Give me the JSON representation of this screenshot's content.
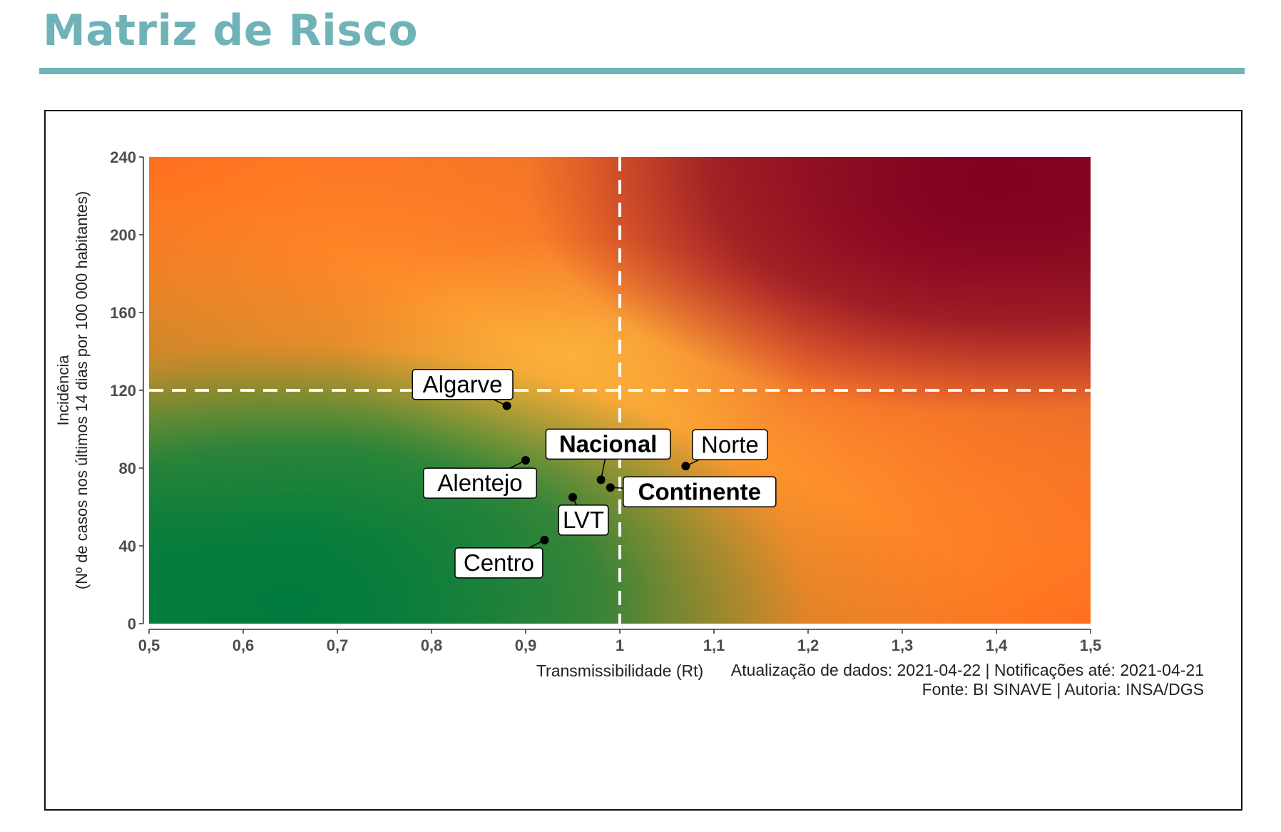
{
  "header": {
    "title": "Matriz de Risco"
  },
  "footer": {
    "update_line": "Atualização de dados: 2021-04-22 | Notificações até: 2021-04-21",
    "source_line": "Fonte: BI SINAVE | Autoria: INSA/DGS"
  },
  "colors": {
    "title": "#6fb3b8",
    "low_risk": "#007a3d",
    "medium_risk": "#f9a937",
    "high_risk": "#ff6f1e",
    "very_high_risk": "#80001f",
    "threshold_line": "#ffffff",
    "point": "#000000"
  },
  "chart_data": {
    "type": "scatter",
    "title": "",
    "xlabel": "Transmissibilidade (Rt)",
    "ylabel_lines": [
      "Incidência",
      "(Nº de casos nos últimos 14 dias por 100 000 habitantes)"
    ],
    "xlim": [
      0.5,
      1.5
    ],
    "ylim": [
      0,
      240
    ],
    "x_ticks": [
      0.5,
      0.6,
      0.7,
      0.8,
      0.9,
      1,
      1.1,
      1.2,
      1.3,
      1.4,
      1.5
    ],
    "x_tick_labels": [
      "0,5",
      "0,6",
      "0,7",
      "0,8",
      "0,9",
      "1",
      "1,1",
      "1,2",
      "1,3",
      "1,4",
      "1,5"
    ],
    "y_ticks": [
      0,
      40,
      80,
      120,
      160,
      200,
      240
    ],
    "y_tick_labels": [
      "0",
      "40",
      "80",
      "120",
      "160",
      "200",
      "240"
    ],
    "threshold_x": 1,
    "threshold_y": 120,
    "background": "risk-gradient",
    "grid": false,
    "legend": "none",
    "points": [
      {
        "label": "Algarve",
        "x": 0.88,
        "y": 112,
        "bold": false,
        "label_pos": "top-left"
      },
      {
        "label": "Alentejo",
        "x": 0.9,
        "y": 84,
        "bold": false,
        "label_pos": "bottom-left"
      },
      {
        "label": "Nacional",
        "x": 0.98,
        "y": 74,
        "bold": true,
        "label_pos": "top"
      },
      {
        "label": "Continente",
        "x": 0.99,
        "y": 70,
        "bold": true,
        "label_pos": "right"
      },
      {
        "label": "LVT",
        "x": 0.95,
        "y": 65,
        "bold": false,
        "label_pos": "bottom"
      },
      {
        "label": "Centro",
        "x": 0.92,
        "y": 43,
        "bold": false,
        "label_pos": "bottom-left"
      },
      {
        "label": "Norte",
        "x": 1.07,
        "y": 81,
        "bold": false,
        "label_pos": "top-right"
      }
    ]
  }
}
